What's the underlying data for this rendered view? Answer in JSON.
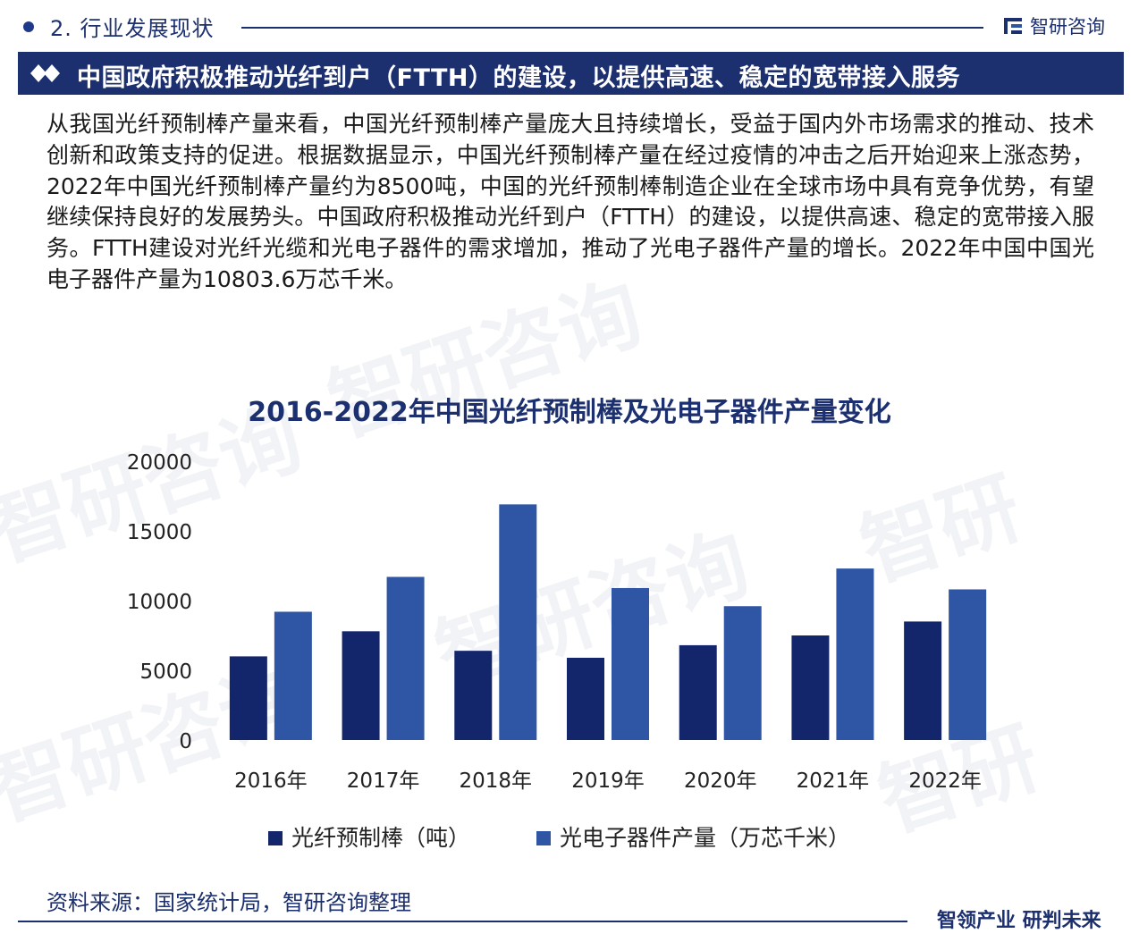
{
  "header": {
    "section_title": "2. 行业发展现状",
    "brand_name": "智研咨询"
  },
  "banner": {
    "text": "中国政府积极推动光纤到户（FTTH）的建设，以提供高速、稳定的宽带接入服务"
  },
  "intro": "从我国光纤预制棒产量来看，中国光纤预制棒产量庞大且持续增长，受益于国内外市场需求的推动、技术创新和政策支持的促进。根据数据显示，中国光纤预制棒产量在经过疫情的冲击之后开始迎来上涨态势，2022年中国光纤预制棒产量约为8500吨，中国的光纤预制棒制造企业在全球市场中具有竞争优势，有望继续保持良好的发展势头。中国政府积极推动光纤到户（FTTH）的建设，以提供高速、稳定的宽带接入服务。FTTH建设对光纤光缆和光电子器件的需求增加，推动了光电子器件产量的增长。2022年中国中国光电子器件产量为10803.6万芯千米。",
  "chart_data": {
    "type": "bar",
    "title": "2016-2022年中国光纤预制棒及光电子器件产量变化",
    "categories": [
      "2016年",
      "2017年",
      "2018年",
      "2019年",
      "2020年",
      "2021年",
      "2022年"
    ],
    "series": [
      {
        "name": "光纤预制棒（吨）",
        "color": "#14266b",
        "values": [
          6000,
          7800,
          6400,
          5900,
          6800,
          7500,
          8500
        ]
      },
      {
        "name": "光电子器件产量（万芯千米）",
        "color": "#2e56a4",
        "values": [
          9200,
          11700,
          16900,
          10900,
          9600,
          12300,
          10803.6
        ]
      }
    ],
    "yticks": [
      0,
      5000,
      10000,
      15000,
      20000
    ],
    "ylim": [
      0,
      20000
    ],
    "grid": false,
    "legend_position": "bottom"
  },
  "footer": {
    "source": "资料来源：国家统计局，智研咨询整理",
    "slogan": "智领产业  研判未来"
  },
  "colors": {
    "navy": "#1c2f6e",
    "series1": "#14266b",
    "series2": "#2e56a4"
  }
}
